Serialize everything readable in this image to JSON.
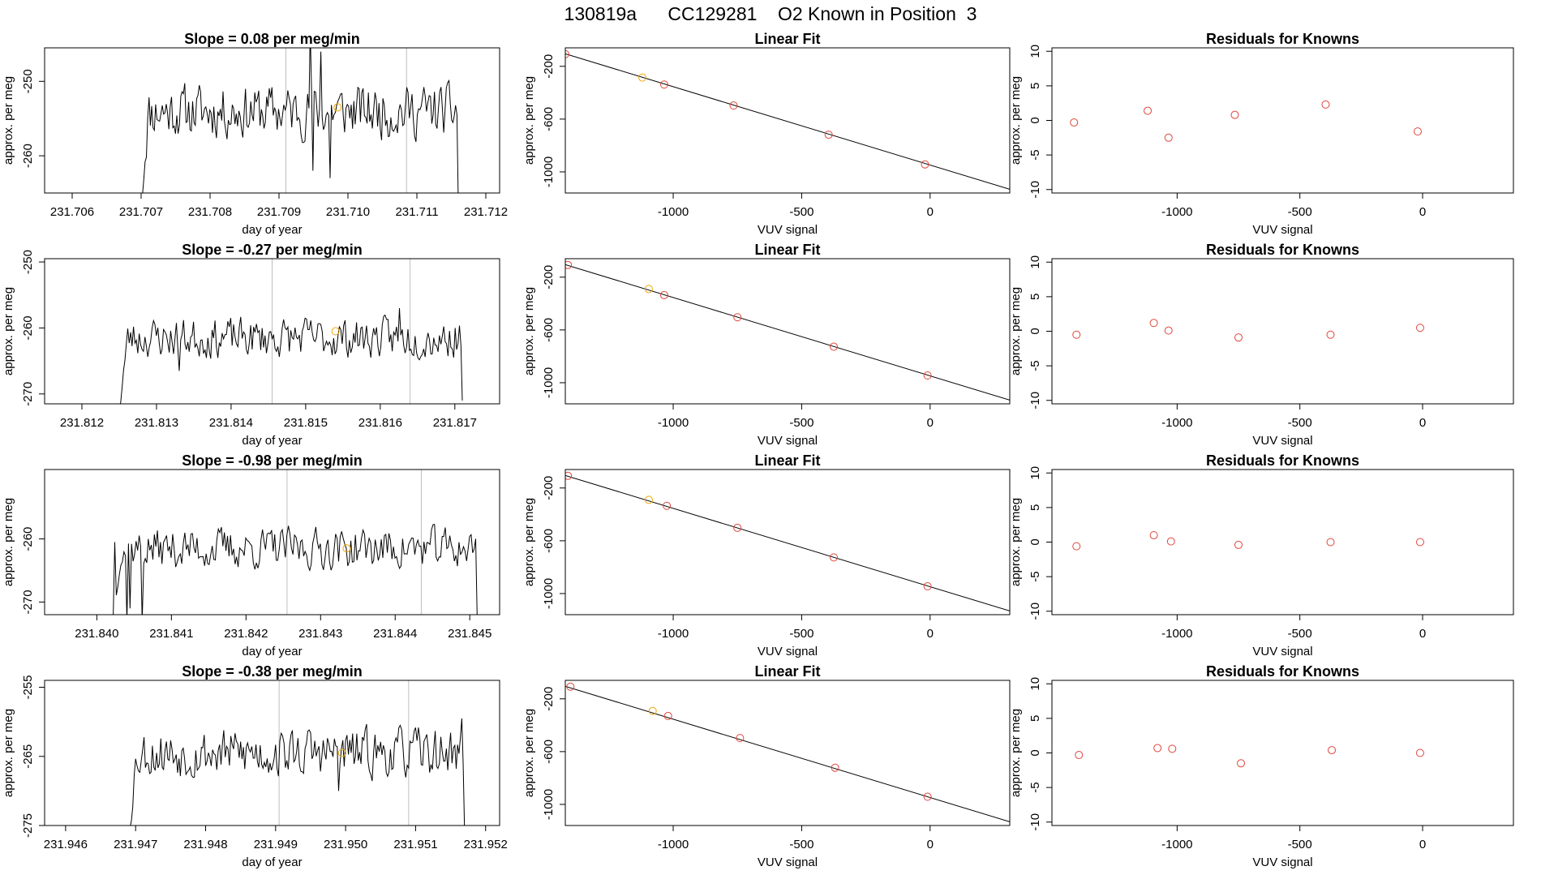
{
  "page": {
    "title": "130819a      CC129281    O2 Known in Position  3"
  },
  "colors": {
    "line": "#000000",
    "grid_vline": "#bebebe",
    "known_point": "#e0453a",
    "highlight_point": "#f0a500",
    "frame": "#000000"
  },
  "chart_data": [
    {
      "type": "line",
      "panel": "time-series-1",
      "title": "Slope =  0.08  per meg/min",
      "xlabel": "day of year",
      "ylabel": "approx. per meg",
      "xlim": [
        231.7056,
        231.7122
      ],
      "ylim": [
        -265,
        -245.5
      ],
      "xticks": [
        "231.706",
        "231.707",
        "231.708",
        "231.709",
        "231.710",
        "231.711",
        "231.712"
      ],
      "yticks": [
        "-250",
        "-260"
      ],
      "ytick_values": [
        -250,
        -260
      ],
      "vlines": [
        231.7091,
        231.71085
      ],
      "highlight_point": {
        "x": 231.70985,
        "y": -253.5
      },
      "trace": {
        "x_start": 231.707,
        "x_end": 231.7116,
        "base": -254,
        "amp": 2.6,
        "start_low": -266,
        "end_low": -266,
        "seed": 11,
        "spikes": [
          [
            231.70945,
            -243
          ],
          [
            231.7096,
            -246
          ],
          [
            231.70975,
            -263
          ],
          [
            231.7095,
            -262
          ]
        ]
      }
    },
    {
      "type": "scatter",
      "panel": "linear-fit-1",
      "title": "Linear Fit",
      "xlabel": "VUV signal",
      "ylabel": "approx. per meg",
      "xlim": [
        -1420,
        310
      ],
      "ylim": [
        -1160,
        -60
      ],
      "xticks": [
        "-1000",
        "-500",
        "0"
      ],
      "xtick_values": [
        -1000,
        -500,
        0
      ],
      "yticks": [
        "-200",
        "-600",
        "-1000"
      ],
      "ytick_values": [
        -200,
        -600,
        -1000
      ],
      "fit_line": {
        "x1": -1420,
        "y1": -105,
        "x2": 310,
        "y2": -1132
      },
      "points": [
        {
          "x": -1420,
          "y": -108,
          "highlight": false
        },
        {
          "x": -1120,
          "y": -285,
          "highlight": true
        },
        {
          "x": -1035,
          "y": -338,
          "highlight": false
        },
        {
          "x": -765,
          "y": -497,
          "highlight": false
        },
        {
          "x": -395,
          "y": -718,
          "highlight": false
        },
        {
          "x": -20,
          "y": -943,
          "highlight": false
        }
      ]
    },
    {
      "type": "scatter",
      "panel": "residuals-1",
      "title": "Residuals for Knowns",
      "xlabel": "VUV signal",
      "ylabel": "approx. per meg",
      "xlim": [
        -1510,
        370
      ],
      "ylim": [
        -10.5,
        10.5
      ],
      "xticks": [
        "-1000",
        "-500",
        "0"
      ],
      "xtick_values": [
        -1000,
        -500,
        0
      ],
      "yticks": [
        "10",
        "5",
        "0",
        "-5",
        "-10"
      ],
      "ytick_values": [
        10,
        5,
        0,
        -5,
        -10
      ],
      "points": [
        {
          "x": -1420,
          "y": -0.3
        },
        {
          "x": -1120,
          "y": 1.4
        },
        {
          "x": -1035,
          "y": -2.5
        },
        {
          "x": -765,
          "y": 0.8
        },
        {
          "x": -395,
          "y": 2.3
        },
        {
          "x": -20,
          "y": -1.6
        }
      ]
    },
    {
      "type": "line",
      "panel": "time-series-2",
      "title": "Slope =  -0.27  per meg/min",
      "xlabel": "day of year",
      "ylabel": "approx. per meg",
      "xlim": [
        231.8115,
        231.8176
      ],
      "ylim": [
        -271.5,
        -249.5
      ],
      "xticks": [
        "231.812",
        "231.813",
        "231.814",
        "231.815",
        "231.816",
        "231.817"
      ],
      "yticks": [
        "-250",
        "-260",
        "-270"
      ],
      "ytick_values": [
        -250,
        -260,
        -270
      ],
      "vlines": [
        231.81455,
        231.8164
      ],
      "highlight_point": {
        "x": 231.8154,
        "y": -260.5
      },
      "trace": {
        "x_start": 231.8125,
        "x_end": 231.8171,
        "base": -261.5,
        "amp": 2.2,
        "start_low": -272,
        "end_low": -271,
        "seed": 23,
        "spikes": [
          [
            231.8133,
            -266.5
          ],
          [
            231.81625,
            -257
          ]
        ]
      }
    },
    {
      "type": "scatter",
      "panel": "linear-fit-2",
      "title": "Linear Fit",
      "xlabel": "VUV signal",
      "ylabel": "approx. per meg",
      "xlim": [
        -1420,
        310
      ],
      "ylim": [
        -1160,
        -60
      ],
      "xticks": [
        "-1000",
        "-500",
        "0"
      ],
      "xtick_values": [
        -1000,
        -500,
        0
      ],
      "yticks": [
        "-200",
        "-600",
        "-1000"
      ],
      "ytick_values": [
        -200,
        -600,
        -1000
      ],
      "fit_line": {
        "x1": -1420,
        "y1": -105,
        "x2": 310,
        "y2": -1132
      },
      "points": [
        {
          "x": -1410,
          "y": -108,
          "highlight": false
        },
        {
          "x": -1095,
          "y": -290,
          "highlight": true
        },
        {
          "x": -1035,
          "y": -336,
          "highlight": false
        },
        {
          "x": -750,
          "y": -504,
          "highlight": false
        },
        {
          "x": -375,
          "y": -727,
          "highlight": false
        },
        {
          "x": -10,
          "y": -945,
          "highlight": false
        }
      ]
    },
    {
      "type": "scatter",
      "panel": "residuals-2",
      "title": "Residuals for Knowns",
      "xlabel": "VUV signal",
      "ylabel": "approx. per meg",
      "xlim": [
        -1510,
        370
      ],
      "ylim": [
        -10.5,
        10.5
      ],
      "xticks": [
        "-1000",
        "-500",
        "0"
      ],
      "xtick_values": [
        -1000,
        -500,
        0
      ],
      "yticks": [
        "10",
        "5",
        "0",
        "-5",
        "-10"
      ],
      "ytick_values": [
        10,
        5,
        0,
        -5,
        -10
      ],
      "points": [
        {
          "x": -1410,
          "y": -0.5
        },
        {
          "x": -1095,
          "y": 1.2
        },
        {
          "x": -1035,
          "y": 0.1
        },
        {
          "x": -750,
          "y": -0.9
        },
        {
          "x": -375,
          "y": -0.5
        },
        {
          "x": -10,
          "y": 0.5
        }
      ]
    },
    {
      "type": "line",
      "panel": "time-series-3",
      "title": "Slope =  -0.98  per meg/min",
      "xlabel": "day of year",
      "ylabel": "approx. per meg",
      "xlim": [
        231.8393,
        231.8454
      ],
      "ylim": [
        -272,
        -249
      ],
      "xticks": [
        "231.840",
        "231.841",
        "231.842",
        "231.843",
        "231.844",
        "231.845"
      ],
      "yticks": [
        "-260",
        "-270"
      ],
      "ytick_values": [
        -260,
        -270
      ],
      "vlines": [
        231.84255,
        231.84435
      ],
      "highlight_point": {
        "x": 231.84335,
        "y": -261.5
      },
      "trace": {
        "x_start": 231.8402,
        "x_end": 231.8451,
        "base": -261.5,
        "amp": 2.4,
        "start_low": -273,
        "end_low": -273,
        "seed": 37,
        "spikes": [
          [
            231.84025,
            -260.5
          ],
          [
            231.8404,
            -273
          ],
          [
            231.84045,
            -271
          ],
          [
            231.8406,
            -273
          ]
        ]
      }
    },
    {
      "type": "scatter",
      "panel": "linear-fit-3",
      "title": "Linear Fit",
      "xlabel": "VUV signal",
      "ylabel": "approx. per meg",
      "xlim": [
        -1420,
        310
      ],
      "ylim": [
        -1160,
        -60
      ],
      "xticks": [
        "-1000",
        "-500",
        "0"
      ],
      "xtick_values": [
        -1000,
        -500,
        0
      ],
      "yticks": [
        "-200",
        "-600",
        "-1000"
      ],
      "ytick_values": [
        -200,
        -600,
        -1000
      ],
      "fit_line": {
        "x1": -1420,
        "y1": -105,
        "x2": 310,
        "y2": -1132
      },
      "points": [
        {
          "x": -1410,
          "y": -108,
          "highlight": false
        },
        {
          "x": -1095,
          "y": -290,
          "highlight": true
        },
        {
          "x": -1025,
          "y": -335,
          "highlight": false
        },
        {
          "x": -750,
          "y": -502,
          "highlight": false
        },
        {
          "x": -375,
          "y": -726,
          "highlight": false
        },
        {
          "x": -10,
          "y": -945,
          "highlight": false
        }
      ]
    },
    {
      "type": "scatter",
      "panel": "residuals-3",
      "title": "Residuals for Knowns",
      "xlabel": "VUV signal",
      "ylabel": "approx. per meg",
      "xlim": [
        -1510,
        370
      ],
      "ylim": [
        -10.5,
        10.5
      ],
      "xticks": [
        "-1000",
        "-500",
        "0"
      ],
      "xtick_values": [
        -1000,
        -500,
        0
      ],
      "yticks": [
        "10",
        "5",
        "0",
        "-5",
        "-10"
      ],
      "ytick_values": [
        10,
        5,
        0,
        -5,
        -10
      ],
      "points": [
        {
          "x": -1410,
          "y": -0.6
        },
        {
          "x": -1095,
          "y": 1.0
        },
        {
          "x": -1025,
          "y": 0.1
        },
        {
          "x": -750,
          "y": -0.4
        },
        {
          "x": -375,
          "y": 0.0
        },
        {
          "x": -10,
          "y": 0.0
        }
      ]
    },
    {
      "type": "line",
      "panel": "time-series-4",
      "title": "Slope =  -0.38  per meg/min",
      "xlabel": "day of year",
      "ylabel": "approx. per meg",
      "xlim": [
        231.9457,
        231.9522
      ],
      "ylim": [
        -275,
        -254
      ],
      "xticks": [
        "231.946",
        "231.947",
        "231.948",
        "231.949",
        "231.950",
        "231.951",
        "231.952"
      ],
      "yticks": [
        "-255",
        "-265",
        "-275"
      ],
      "ytick_values": [
        -255,
        -265,
        -275
      ],
      "vlines": [
        231.94905,
        231.9509
      ],
      "highlight_point": {
        "x": 231.94995,
        "y": -264.5
      },
      "trace": {
        "x_start": 231.9469,
        "x_end": 231.9517,
        "base": -264.5,
        "amp": 2.6,
        "start_low": -276,
        "end_low": -276,
        "seed": 53,
        "spikes": [
          [
            231.9499,
            -270
          ],
          [
            231.95165,
            -259.5
          ]
        ]
      }
    },
    {
      "type": "scatter",
      "panel": "linear-fit-4",
      "title": "Linear Fit",
      "xlabel": "VUV signal",
      "ylabel": "approx. per meg",
      "xlim": [
        -1420,
        310
      ],
      "ylim": [
        -1160,
        -60
      ],
      "xticks": [
        "-1000",
        "-500",
        "0"
      ],
      "xtick_values": [
        -1000,
        -500,
        0
      ],
      "yticks": [
        "-200",
        "-600",
        "-1000"
      ],
      "ytick_values": [
        -200,
        -600,
        -1000
      ],
      "fit_line": {
        "x1": -1420,
        "y1": -105,
        "x2": 310,
        "y2": -1132
      },
      "points": [
        {
          "x": -1400,
          "y": -108,
          "highlight": false
        },
        {
          "x": -1080,
          "y": -292,
          "highlight": true
        },
        {
          "x": -1020,
          "y": -330,
          "highlight": false
        },
        {
          "x": -740,
          "y": -497,
          "highlight": false
        },
        {
          "x": -370,
          "y": -722,
          "highlight": false
        },
        {
          "x": -10,
          "y": -942,
          "highlight": false
        }
      ]
    },
    {
      "type": "scatter",
      "panel": "residuals-4",
      "title": "Residuals for Knowns",
      "xlabel": "VUV signal",
      "ylabel": "approx. per meg",
      "xlim": [
        -1510,
        370
      ],
      "ylim": [
        -10.5,
        10.5
      ],
      "xticks": [
        "-1000",
        "-500",
        "0"
      ],
      "xtick_values": [
        -1000,
        -500,
        0
      ],
      "yticks": [
        "10",
        "5",
        "0",
        "-5",
        "-10"
      ],
      "ytick_values": [
        10,
        5,
        0,
        -5,
        -10
      ],
      "points": [
        {
          "x": -1400,
          "y": -0.3
        },
        {
          "x": -1080,
          "y": 0.7
        },
        {
          "x": -1020,
          "y": 0.6
        },
        {
          "x": -740,
          "y": -1.5
        },
        {
          "x": -370,
          "y": 0.4
        },
        {
          "x": -10,
          "y": 0.0
        }
      ]
    }
  ]
}
